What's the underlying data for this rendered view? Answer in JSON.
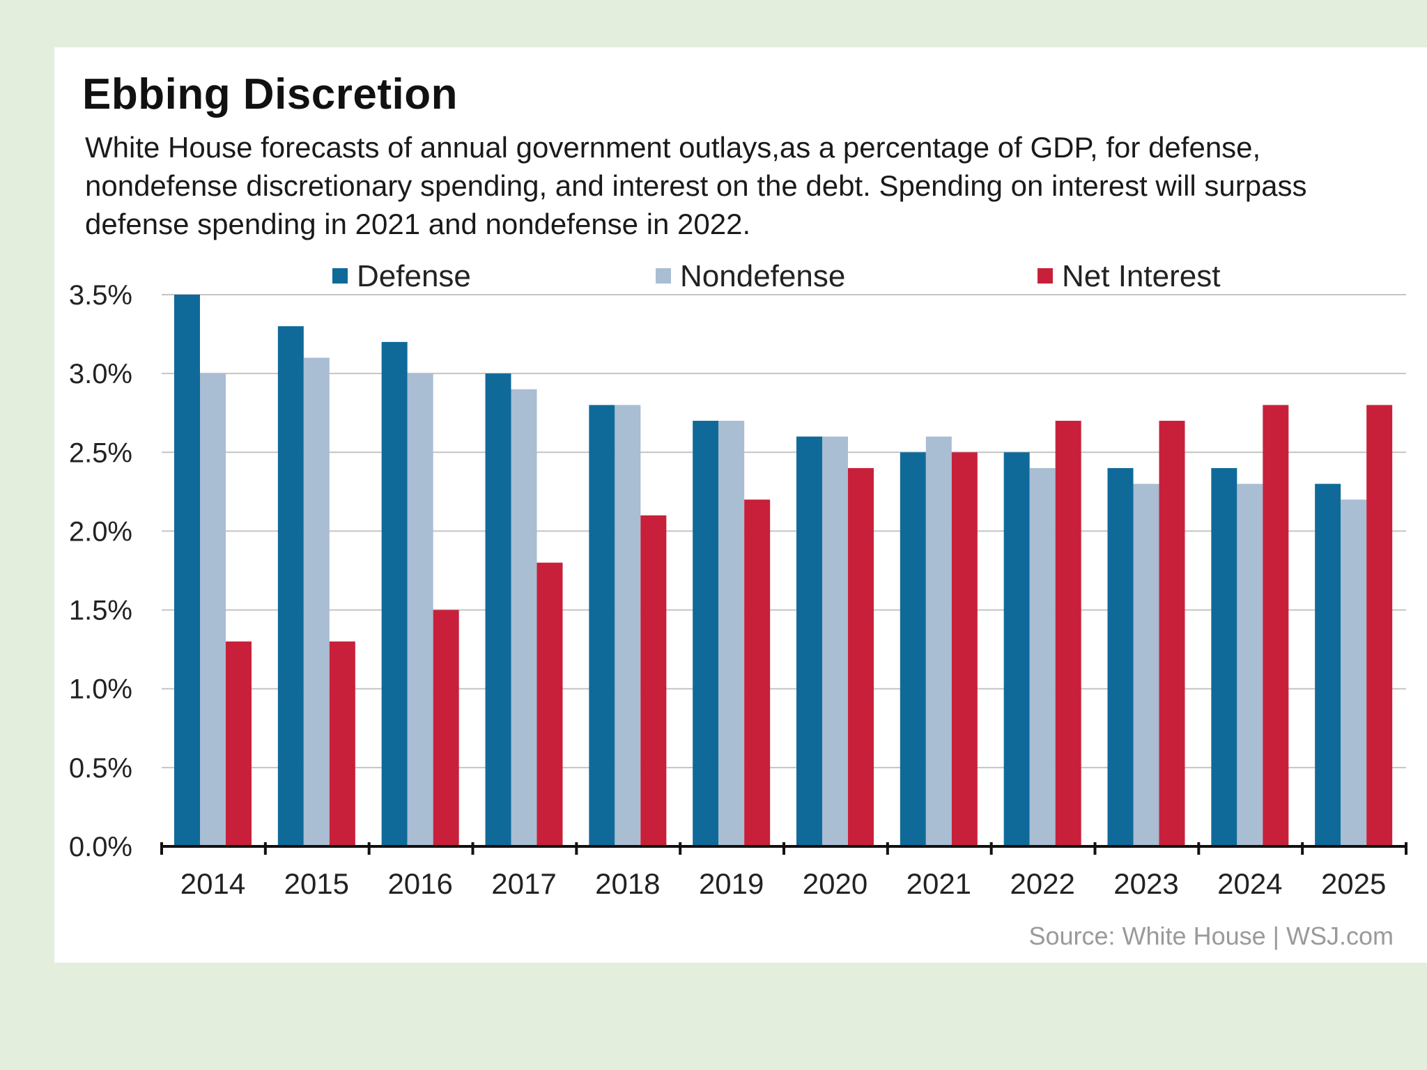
{
  "chart_data": {
    "type": "bar",
    "title": "Ebbing Discretion",
    "subtitle": "White House forecasts of annual government outlays,as a percentage of GDP, for defense, nondefense discretionary spending, and interest on the debt. Spending on interest will surpass defense spending in 2021 and nondefense in 2022.",
    "categories": [
      "2014",
      "2015",
      "2016",
      "2017",
      "2018",
      "2019",
      "2020",
      "2021",
      "2022",
      "2023",
      "2024",
      "2025"
    ],
    "series": [
      {
        "name": "Defense",
        "color": "#0f6a9a",
        "values": [
          3.5,
          3.3,
          3.2,
          3.0,
          2.8,
          2.7,
          2.6,
          2.5,
          2.5,
          2.4,
          2.4,
          2.3
        ]
      },
      {
        "name": "Nondefense",
        "color": "#a9bdd3",
        "values": [
          3.0,
          3.1,
          3.0,
          2.9,
          2.8,
          2.7,
          2.6,
          2.6,
          2.4,
          2.3,
          2.3,
          2.2
        ]
      },
      {
        "name": "Net Interest",
        "color": "#c8203a",
        "values": [
          1.3,
          1.3,
          1.5,
          1.8,
          2.1,
          2.2,
          2.4,
          2.5,
          2.7,
          2.7,
          2.8,
          2.8
        ]
      }
    ],
    "ylim": [
      0,
      3.5
    ],
    "yticks": [
      "0.0%",
      "0.5%",
      "1.0%",
      "1.5%",
      "2.0%",
      "2.5%",
      "3.0%",
      "3.5%"
    ],
    "grid": true,
    "legend_position": "top",
    "source": "Source: White House  |  WSJ.com"
  }
}
